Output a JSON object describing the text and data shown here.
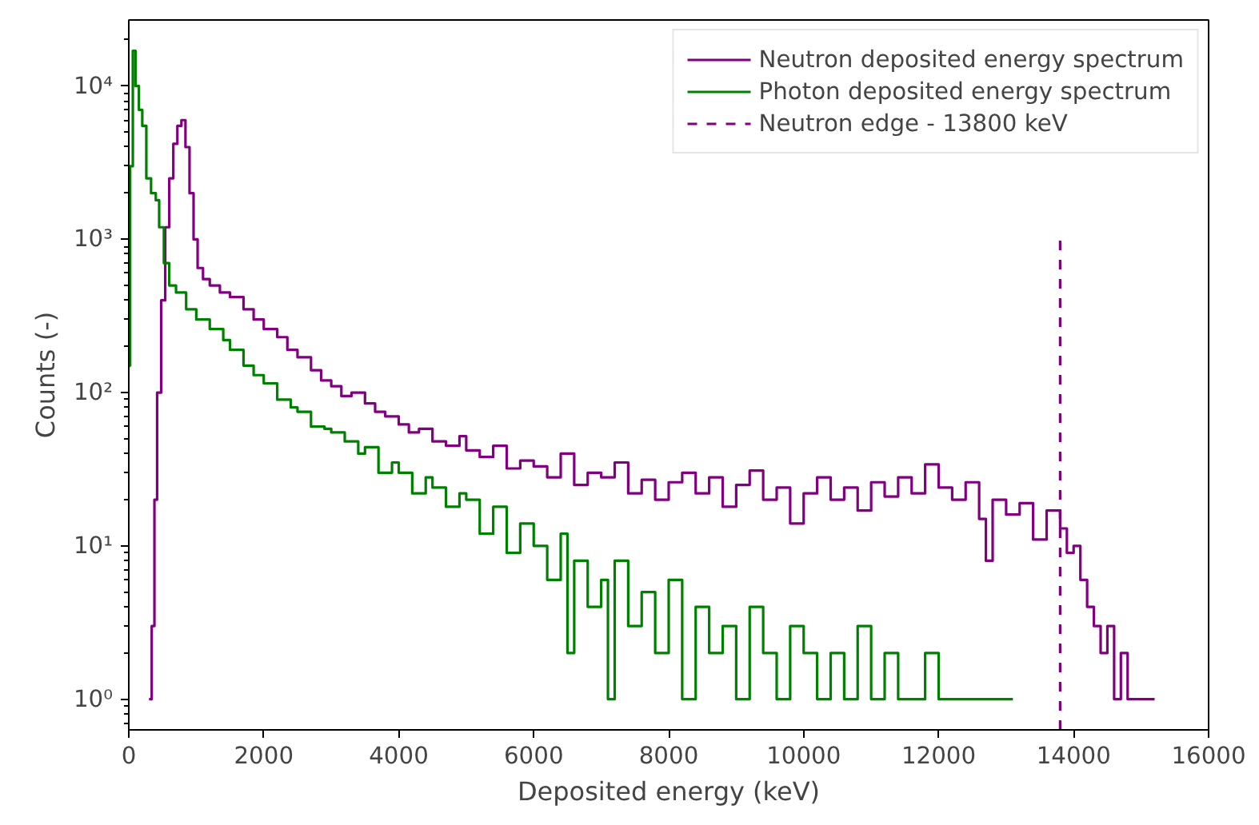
{
  "chart_data": {
    "type": "step",
    "xlabel": "Deposited energy (keV)",
    "ylabel": "Counts (-)",
    "log": "y",
    "grid": false,
    "legend": "top right",
    "xlim": [
      0,
      16000
    ],
    "xticks": [
      0,
      2000,
      4000,
      6000,
      8000,
      10000,
      12000,
      14000,
      16000
    ],
    "ylim": [
      0.63,
      27000
    ],
    "yticks": [
      {
        "value": 1,
        "label": "10⁰"
      },
      {
        "value": 10,
        "label": "10¹"
      },
      {
        "value": 100,
        "label": "10²"
      },
      {
        "value": 1000,
        "label": "10³"
      },
      {
        "value": 10000,
        "label": "10⁴"
      }
    ],
    "series": [
      {
        "name": "Neutron deposited energy spectrum",
        "color": "#800080",
        "x": [
          300,
          340,
          380,
          420,
          480,
          540,
          600,
          660,
          720,
          780,
          840,
          900,
          960,
          1020,
          1100,
          1200,
          1350,
          1500,
          1700,
          1850,
          2000,
          2200,
          2350,
          2500,
          2700,
          2850,
          3000,
          3150,
          3300,
          3500,
          3650,
          3800,
          4000,
          4150,
          4300,
          4500,
          4700,
          4900,
          5000,
          5200,
          5400,
          5600,
          5800,
          6000,
          6200,
          6400,
          6600,
          6800,
          7000,
          7200,
          7400,
          7600,
          7800,
          8000,
          8200,
          8400,
          8600,
          8800,
          9000,
          9200,
          9400,
          9600,
          9800,
          10000,
          10200,
          10400,
          10600,
          10800,
          11000,
          11200,
          11400,
          11600,
          11800,
          12000,
          12200,
          12400,
          12600,
          12700,
          12800,
          13000,
          13200,
          13400,
          13600,
          13800,
          13900,
          14000,
          14100,
          14200,
          14300,
          14400,
          14500,
          14600,
          14700,
          14800,
          14900,
          15000,
          15200
        ],
        "values": [
          1,
          3,
          20,
          100,
          400,
          1200,
          2500,
          4200,
          5500,
          6000,
          4000,
          2000,
          1000,
          650,
          550,
          500,
          450,
          420,
          350,
          300,
          260,
          230,
          190,
          170,
          140,
          120,
          110,
          95,
          100,
          85,
          75,
          70,
          62,
          55,
          58,
          48,
          45,
          52,
          42,
          38,
          45,
          32,
          36,
          33,
          28,
          40,
          25,
          30,
          28,
          35,
          22,
          27,
          20,
          26,
          30,
          22,
          28,
          18,
          25,
          31,
          20,
          24,
          14,
          22,
          28,
          20,
          24,
          17,
          26,
          21,
          28,
          22,
          34,
          24,
          20,
          26,
          15,
          8,
          20,
          16,
          19,
          11,
          17,
          13,
          9,
          10,
          6,
          4,
          3,
          2,
          3,
          1,
          2,
          1,
          1,
          1,
          1
        ]
      },
      {
        "name": "Photon deposited energy spectrum",
        "color": "#008000",
        "x": [
          0,
          20,
          60,
          100,
          150,
          200,
          260,
          330,
          400,
          450,
          520,
          600,
          700,
          850,
          1000,
          1200,
          1400,
          1500,
          1700,
          1850,
          2000,
          2200,
          2400,
          2500,
          2700,
          2900,
          3000,
          3200,
          3400,
          3500,
          3700,
          3900,
          4000,
          4200,
          4400,
          4500,
          4700,
          4900,
          5000,
          5200,
          5400,
          5600,
          5800,
          6000,
          6200,
          6400,
          6500,
          6600,
          6800,
          7000,
          7100,
          7200,
          7400,
          7600,
          7800,
          8000,
          8200,
          8400,
          8600,
          8800,
          9000,
          9200,
          9400,
          9600,
          9800,
          10000,
          10200,
          10400,
          10600,
          10800,
          11000,
          11200,
          11400,
          11600,
          11800,
          12000,
          12200,
          12400,
          12600,
          12800,
          13000,
          13100
        ],
        "values": [
          150,
          3000,
          17000,
          10000,
          7000,
          5500,
          2500,
          2000,
          1800,
          1200,
          700,
          500,
          450,
          350,
          300,
          260,
          220,
          190,
          150,
          130,
          115,
          90,
          80,
          75,
          60,
          58,
          55,
          48,
          40,
          44,
          30,
          35,
          30,
          22,
          28,
          24,
          18,
          22,
          20,
          12,
          18,
          9,
          14,
          10,
          6,
          12,
          2,
          8,
          4,
          6,
          1,
          8,
          3,
          5,
          2,
          6,
          1,
          4,
          2,
          3,
          1,
          4,
          2,
          1,
          3,
          2,
          1,
          2,
          1,
          3,
          1,
          2,
          1,
          1,
          2,
          1,
          1,
          1,
          1,
          1,
          1,
          1
        ]
      },
      {
        "name": "Neutron edge - 13800 keV",
        "color": "#800080",
        "type": "line",
        "line_style": "dashed",
        "x": [
          13800,
          13800
        ],
        "values": [
          0.63,
          1000
        ]
      }
    ]
  }
}
